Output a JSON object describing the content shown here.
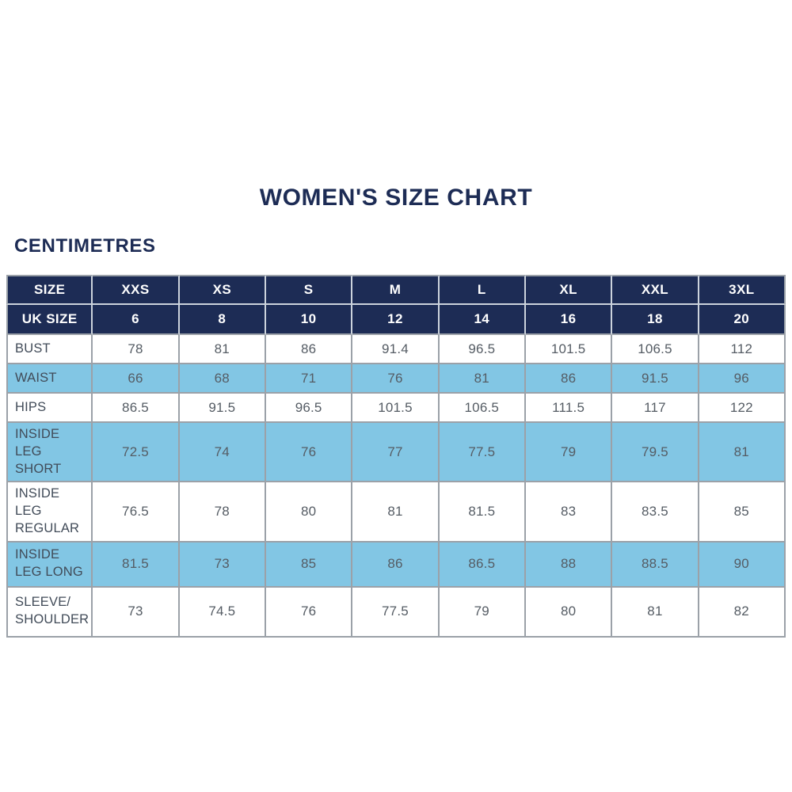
{
  "page": {
    "title": "WOMEN'S SIZE CHART",
    "subtitle": "CENTIMETRES"
  },
  "colors": {
    "navy": "#1d2c55",
    "light_blue": "#82c6e4",
    "border_gray": "#9ba1a8",
    "header_border": "#ccd3dc",
    "label_text": "#414b58",
    "value_text": "#555c64",
    "title_text": "#1d2c55"
  },
  "chart_data": {
    "type": "table",
    "title": "WOMEN'S SIZE CHART",
    "units": "CENTIMETRES",
    "header_rows": [
      {
        "label": "SIZE",
        "values": [
          "XXS",
          "XS",
          "S",
          "M",
          "L",
          "XL",
          "XXL",
          "3XL"
        ]
      },
      {
        "label": "UK SIZE",
        "values": [
          "6",
          "8",
          "10",
          "12",
          "14",
          "16",
          "18",
          "20"
        ]
      }
    ],
    "rows": [
      {
        "label": "BUST",
        "values": [
          "78",
          "81",
          "86",
          "91.4",
          "96.5",
          "101.5",
          "106.5",
          "112"
        ]
      },
      {
        "label": "WAIST",
        "values": [
          "66",
          "68",
          "71",
          "76",
          "81",
          "86",
          "91.5",
          "96"
        ]
      },
      {
        "label": "HIPS",
        "values": [
          "86.5",
          "91.5",
          "96.5",
          "101.5",
          "106.5",
          "111.5",
          "117",
          "122"
        ]
      },
      {
        "label": "INSIDE LEG SHORT",
        "values": [
          "72.5",
          "74",
          "76",
          "77",
          "77.5",
          "79",
          "79.5",
          "81"
        ]
      },
      {
        "label": "INSIDE LEG REGULAR",
        "values": [
          "76.5",
          "78",
          "80",
          "81",
          "81.5",
          "83",
          "83.5",
          "85"
        ]
      },
      {
        "label": "INSIDE LEG LONG",
        "values": [
          "81.5",
          "73",
          "85",
          "86",
          "86.5",
          "88",
          "88.5",
          "90"
        ]
      },
      {
        "label": "SLEEVE/\nSHOULDER",
        "values": [
          "73",
          "74.5",
          "76",
          "77.5",
          "79",
          "80",
          "81",
          "82"
        ]
      }
    ]
  }
}
